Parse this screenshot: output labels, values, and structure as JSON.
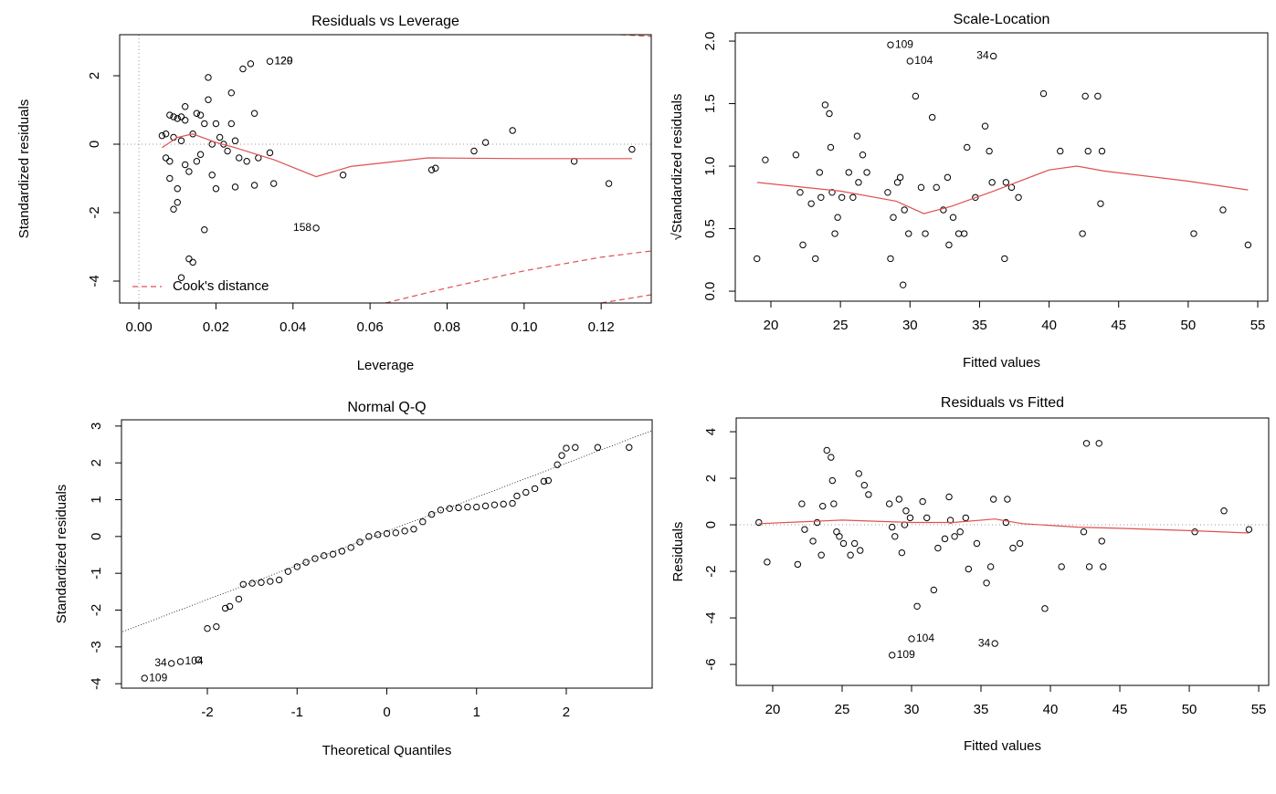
{
  "chart_data": [
    {
      "type": "scatter",
      "title": "Residuals vs Leverage",
      "xlabel": "Leverage",
      "ylabel": "Standardized residuals",
      "xlim": [
        -0.005,
        0.133
      ],
      "ylim": [
        -4.64,
        3.2
      ],
      "xticks": [
        {
          "value": 0,
          "label": "0.00"
        },
        {
          "value": 0.02,
          "label": "0.02"
        },
        {
          "value": 0.04,
          "label": "0.04"
        },
        {
          "value": 0.06,
          "label": "0.06"
        },
        {
          "value": 0.08,
          "label": "0.08"
        },
        {
          "value": 0.1,
          "label": "0.10"
        },
        {
          "value": 0.12,
          "label": "0.12"
        }
      ],
      "yticks": [
        -4,
        -2,
        0,
        2
      ],
      "hlines": [
        0
      ],
      "vlines": [
        0
      ],
      "legend": "bottom left",
      "series": [
        {
          "style": "points",
          "color": "#000000",
          "x": [
            0.006,
            0.007,
            0.007,
            0.008,
            0.008,
            0.008,
            0.009,
            0.009,
            0.009,
            0.01,
            0.01,
            0.01,
            0.011,
            0.011,
            0.011,
            0.012,
            0.012,
            0.012,
            0.013,
            0.013,
            0.014,
            0.014,
            0.015,
            0.015,
            0.016,
            0.016,
            0.017,
            0.017,
            0.018,
            0.018,
            0.019,
            0.019,
            0.02,
            0.02,
            0.021,
            0.022,
            0.023,
            0.024,
            0.024,
            0.025,
            0.025,
            0.026,
            0.027,
            0.028,
            0.029,
            0.03,
            0.03,
            0.031,
            0.034,
            0.034,
            0.035,
            0.046,
            0.053,
            0.076,
            0.077,
            0.087,
            0.09,
            0.097,
            0.113,
            0.122,
            0.128
          ],
          "y": [
            0.25,
            0.3,
            -0.4,
            0.85,
            -0.5,
            -1.0,
            0.2,
            -1.9,
            0.8,
            -1.7,
            0.75,
            -1.3,
            0.1,
            -3.9,
            0.8,
            1.1,
            -0.6,
            0.7,
            -3.35,
            -0.8,
            -3.45,
            0.3,
            0.9,
            -0.5,
            0.85,
            -0.3,
            -2.5,
            0.6,
            1.95,
            1.3,
            -0.9,
            0.0,
            -1.3,
            0.6,
            0.2,
            0.0,
            -0.2,
            0.6,
            1.5,
            -1.25,
            0.1,
            -0.4,
            2.2,
            -0.5,
            2.35,
            0.9,
            -1.2,
            -0.4,
            2.42,
            -0.25,
            -1.15,
            -2.45,
            -0.9,
            -0.75,
            -0.7,
            -0.2,
            0.05,
            0.4,
            -0.5,
            -1.15,
            -0.15
          ]
        },
        {
          "style": "line",
          "color": "#e05050",
          "x": [
            0.006,
            0.01,
            0.014,
            0.02,
            0.025,
            0.035,
            0.046,
            0.055,
            0.075,
            0.1,
            0.128
          ],
          "y": [
            -0.1,
            0.2,
            0.3,
            0.05,
            -0.1,
            -0.45,
            -0.95,
            -0.65,
            -0.4,
            -0.42,
            -0.42
          ]
        },
        {
          "style": "dashed",
          "color": "#e05050",
          "name": "Cook's distance",
          "x": [
            0.064,
            0.08,
            0.1,
            0.12,
            0.133
          ],
          "y": [
            -4.64,
            -4.2,
            -3.7,
            -3.3,
            -3.12
          ]
        },
        {
          "style": "dashed",
          "color": "#e05050",
          "x": [
            0.12,
            0.133
          ],
          "y": [
            -4.64,
            -4.4
          ]
        },
        {
          "style": "dashed",
          "color": "#e05050",
          "x": [
            0.125,
            0.133
          ],
          "y": [
            3.2,
            3.15
          ]
        }
      ],
      "annotations": [
        {
          "text": "129",
          "x": 0.034,
          "y": 2.42,
          "pos": "right"
        },
        {
          "text": "120",
          "x": 0.034,
          "y": 2.42,
          "pos": "right"
        },
        {
          "text": "158",
          "x": 0.046,
          "y": -2.45,
          "pos": "left"
        }
      ]
    },
    {
      "type": "scatter",
      "title": "Scale-Location",
      "xlabel": "Fitted values",
      "ylabel": "√Standardized residuals",
      "xlim": [
        17.44,
        55.72
      ],
      "ylim": [
        -0.08,
        2.066
      ],
      "xticks": [
        20,
        25,
        30,
        35,
        40,
        45,
        50,
        55
      ],
      "yticks": [
        {
          "value": 0,
          "label": "0.0"
        },
        0.5,
        {
          "value": 1,
          "label": "1.0"
        },
        1.5,
        {
          "value": 2,
          "label": "2.0"
        }
      ],
      "series": [
        {
          "style": "points",
          "color": "#000000",
          "x": [
            19,
            19.6,
            21.8,
            22.1,
            22.3,
            22.9,
            23.2,
            23.5,
            23.6,
            23.9,
            24.2,
            24.3,
            24.4,
            24.6,
            24.8,
            25.1,
            25.6,
            25.9,
            26.2,
            26.3,
            26.6,
            26.9,
            28.4,
            28.6,
            28.8,
            28.6,
            29.1,
            29.3,
            29.5,
            29.6,
            29.9,
            30.0,
            30.4,
            30.8,
            31.1,
            31.6,
            31.9,
            32.4,
            32.7,
            32.8,
            33.1,
            33.5,
            33.9,
            34.1,
            34.7,
            35.4,
            35.7,
            35.9,
            36.0,
            36.8,
            36.9,
            37.3,
            37.8,
            39.6,
            40.8,
            42.4,
            42.6,
            42.8,
            43.5,
            43.7,
            43.8,
            50.4,
            52.5,
            54.3
          ],
          "y": [
            0.26,
            1.05,
            1.09,
            0.79,
            0.37,
            0.7,
            0.26,
            0.95,
            0.75,
            1.49,
            1.42,
            1.15,
            0.79,
            0.46,
            0.59,
            0.75,
            0.95,
            0.75,
            1.24,
            0.87,
            1.09,
            0.95,
            0.79,
            0.26,
            0.59,
            1.97,
            0.87,
            0.91,
            0.05,
            0.65,
            0.46,
            1.84,
            1.56,
            0.83,
            0.46,
            1.39,
            0.83,
            0.65,
            0.91,
            0.37,
            0.59,
            0.46,
            0.46,
            1.15,
            0.75,
            1.32,
            1.12,
            0.87,
            1.88,
            0.26,
            0.87,
            0.83,
            0.75,
            1.58,
            1.12,
            0.46,
            1.56,
            1.12,
            1.56,
            0.7,
            1.12,
            0.46,
            0.65,
            0.37
          ]
        },
        {
          "style": "line",
          "color": "#e05050",
          "x": [
            19,
            25,
            29,
            31,
            33,
            36,
            40,
            42,
            44,
            50,
            54.3
          ],
          "y": [
            0.87,
            0.8,
            0.72,
            0.62,
            0.68,
            0.8,
            0.97,
            1.0,
            0.96,
            0.88,
            0.81
          ]
        }
      ],
      "annotations": [
        {
          "text": "109",
          "x": 28.6,
          "y": 1.97,
          "pos": "right"
        },
        {
          "text": "104",
          "x": 30,
          "y": 1.84,
          "pos": "right"
        },
        {
          "text": "34",
          "x": 36,
          "y": 1.88,
          "pos": "left"
        }
      ]
    },
    {
      "type": "scatter",
      "title": "Normal Q-Q",
      "xlabel": "Theoretical Quantiles",
      "ylabel": "Standardized residuals",
      "xlim": [
        -2.957,
        2.957
      ],
      "ylim": [
        -4.12,
        3.17
      ],
      "xticks": [
        -2,
        -1,
        0,
        1,
        2
      ],
      "yticks": [
        -4,
        -3,
        -2,
        -1,
        0,
        1,
        2,
        3
      ],
      "series": [
        {
          "style": "points",
          "color": "#000000",
          "x": [
            -2.7,
            -2.4,
            -2.3,
            -2.1,
            -2.0,
            -1.9,
            -1.8,
            -1.75,
            -1.65,
            -1.6,
            -1.5,
            -1.4,
            -1.3,
            -1.2,
            -1.1,
            -1.0,
            -0.9,
            -0.8,
            -0.7,
            -0.6,
            -0.5,
            -0.4,
            -0.3,
            -0.2,
            -0.1,
            0.0,
            0.1,
            0.2,
            0.3,
            0.4,
            0.5,
            0.6,
            0.7,
            0.8,
            0.9,
            1.0,
            1.1,
            1.2,
            1.3,
            1.4,
            1.45,
            1.55,
            1.65,
            1.75,
            1.8,
            1.9,
            1.95,
            2.0,
            2.1,
            2.35,
            2.7
          ],
          "y": [
            -3.85,
            -3.45,
            -3.4,
            -3.35,
            -2.5,
            -2.45,
            -1.95,
            -1.9,
            -1.7,
            -1.3,
            -1.27,
            -1.25,
            -1.22,
            -1.18,
            -0.95,
            -0.82,
            -0.7,
            -0.6,
            -0.52,
            -0.48,
            -0.4,
            -0.3,
            -0.15,
            0.0,
            0.05,
            0.08,
            0.1,
            0.15,
            0.2,
            0.4,
            0.6,
            0.72,
            0.76,
            0.78,
            0.8,
            0.8,
            0.83,
            0.86,
            0.88,
            0.9,
            1.1,
            1.2,
            1.3,
            1.5,
            1.52,
            1.95,
            2.2,
            2.4,
            2.42,
            2.42,
            2.42
          ]
        },
        {
          "style": "dotted",
          "color": "#000000",
          "x": [
            -3,
            3
          ],
          "y": [
            -2.64,
            2.92
          ]
        }
      ],
      "annotations": [
        {
          "text": "109",
          "x": -2.7,
          "y": -3.85,
          "pos": "right"
        },
        {
          "text": "34",
          "x": -2.4,
          "y": -3.45,
          "pos": "left"
        },
        {
          "text": "104",
          "x": -2.3,
          "y": -3.4,
          "pos": "right"
        }
      ]
    },
    {
      "type": "scatter",
      "title": "Residuals vs Fitted",
      "xlabel": "Fitted values",
      "ylabel": "Residuals",
      "xlim": [
        17.37,
        55.72
      ],
      "ylim": [
        -6.9,
        4.59
      ],
      "xticks": [
        20,
        25,
        30,
        35,
        40,
        45,
        50,
        55
      ],
      "yticks": [
        -6,
        -4,
        -2,
        0,
        2,
        4
      ],
      "hlines": [
        0
      ],
      "series": [
        {
          "style": "points",
          "color": "#000000",
          "x": [
            19,
            19.6,
            21.8,
            22.1,
            22.3,
            22.9,
            23.2,
            23.5,
            23.6,
            23.9,
            24.2,
            24.3,
            24.4,
            24.6,
            24.8,
            25.1,
            25.6,
            25.9,
            26.2,
            26.3,
            26.6,
            26.9,
            28.4,
            28.6,
            28.8,
            28.6,
            29.1,
            29.3,
            29.5,
            29.6,
            29.9,
            30.0,
            30.4,
            30.8,
            31.1,
            31.6,
            31.9,
            32.4,
            32.7,
            32.8,
            33.1,
            33.5,
            33.9,
            34.1,
            34.7,
            35.4,
            35.7,
            35.9,
            36.0,
            36.8,
            36.9,
            37.3,
            37.8,
            39.6,
            40.8,
            42.4,
            42.6,
            42.8,
            43.5,
            43.7,
            43.8,
            50.4,
            52.5,
            54.3
          ],
          "y": [
            0.1,
            -1.6,
            -1.7,
            0.9,
            -0.2,
            -0.7,
            0.1,
            -1.3,
            0.8,
            3.2,
            2.9,
            1.9,
            0.9,
            -0.3,
            -0.5,
            -0.8,
            -1.3,
            -0.8,
            2.2,
            -1.1,
            1.7,
            1.3,
            0.9,
            -0.1,
            -0.5,
            -5.6,
            1.1,
            -1.2,
            0.0,
            0.6,
            0.3,
            -4.9,
            -3.5,
            1.0,
            0.3,
            -2.8,
            -1.0,
            -0.6,
            1.2,
            0.2,
            -0.5,
            -0.3,
            0.3,
            -1.9,
            -0.8,
            -2.5,
            -1.8,
            1.1,
            -5.1,
            0.1,
            1.1,
            -1.0,
            -0.8,
            -3.6,
            -1.8,
            -0.3,
            3.5,
            -1.8,
            3.5,
            -0.7,
            -1.8,
            -0.3,
            0.6,
            -0.2
          ]
        },
        {
          "style": "line",
          "color": "#e05050",
          "x": [
            19,
            25,
            30,
            33,
            36,
            38,
            42,
            45,
            50,
            54.3
          ],
          "y": [
            0.05,
            0.2,
            0.1,
            0.1,
            0.25,
            0.05,
            -0.1,
            -0.15,
            -0.25,
            -0.35
          ]
        }
      ],
      "annotations": [
        {
          "text": "104",
          "x": 30,
          "y": -4.9,
          "pos": "right"
        },
        {
          "text": "109",
          "x": 28.6,
          "y": -5.6,
          "pos": "right"
        },
        {
          "text": "34",
          "x": 36,
          "y": -5.1,
          "pos": "left"
        }
      ]
    }
  ]
}
